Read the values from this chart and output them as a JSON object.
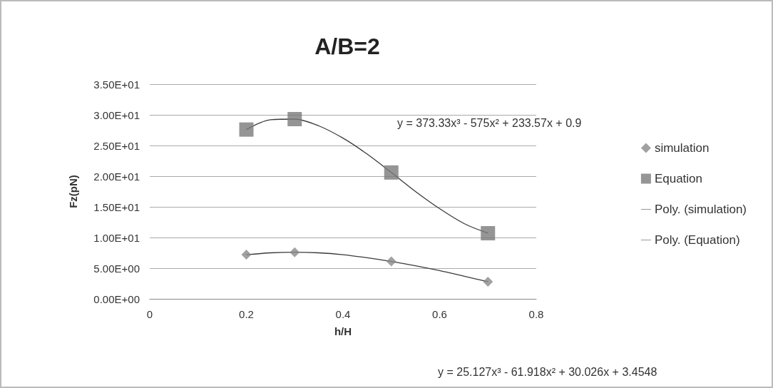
{
  "chart_data": {
    "type": "scatter",
    "title": "A/B=2",
    "xlabel": "h/H",
    "ylabel": "Fz(pN)",
    "xlim": [
      0,
      0.8
    ],
    "xticks": [
      0,
      0.2,
      0.4,
      0.6,
      0.8
    ],
    "ylim": [
      0,
      35
    ],
    "yticks": [
      {
        "value": 0,
        "label": "0.00E+00"
      },
      {
        "value": 5,
        "label": "5.00E+00"
      },
      {
        "value": 10,
        "label": "1.00E+01"
      },
      {
        "value": 15,
        "label": "1.50E+01"
      },
      {
        "value": 20,
        "label": "2.00E+01"
      },
      {
        "value": 25,
        "label": "2.50E+01"
      },
      {
        "value": 30,
        "label": "3.00E+01"
      },
      {
        "value": 35,
        "label": "3.50E+01"
      }
    ],
    "grid": "y",
    "legend": "right",
    "series": [
      {
        "name": "simulation",
        "type": "scatter",
        "marker": "diamond",
        "color": "#8a8a8a",
        "x": [
          0.2,
          0.3,
          0.5,
          0.7
        ],
        "values": [
          7.2,
          7.6,
          6.1,
          2.8
        ]
      },
      {
        "name": "Equation",
        "type": "scatter",
        "marker": "square",
        "color": "#7a7a7a",
        "x": [
          0.2,
          0.3,
          0.5,
          0.7
        ],
        "values": [
          27.6,
          29.3,
          20.6,
          10.7
        ]
      },
      {
        "name": "Poly. (simulation)",
        "type": "line",
        "marker": "none",
        "line_style": "solid",
        "color": "#3a3a3a",
        "x": [
          0.2,
          0.25,
          0.3,
          0.35,
          0.4,
          0.45,
          0.5,
          0.55,
          0.6,
          0.65,
          0.7
        ],
        "values": [
          7.2,
          7.5,
          7.6,
          7.5,
          7.2,
          6.7,
          6.1,
          5.4,
          4.6,
          3.7,
          2.8
        ]
      },
      {
        "name": "Poly. (Equation)",
        "type": "line",
        "marker": "none",
        "line_style": "solid",
        "color": "#3a3a3a",
        "x": [
          0.2,
          0.25,
          0.3,
          0.35,
          0.4,
          0.45,
          0.5,
          0.55,
          0.6,
          0.65,
          0.7
        ],
        "values": [
          27.6,
          29.2,
          29.3,
          28.2,
          26.2,
          23.6,
          20.6,
          17.5,
          14.7,
          12.3,
          10.7
        ]
      }
    ],
    "annotations": [
      "y = 373.33x³ - 575x² + 233.57x + 0.9",
      "y = 25.127x³ - 61.918x² + 30.026x + 3.4548"
    ]
  }
}
